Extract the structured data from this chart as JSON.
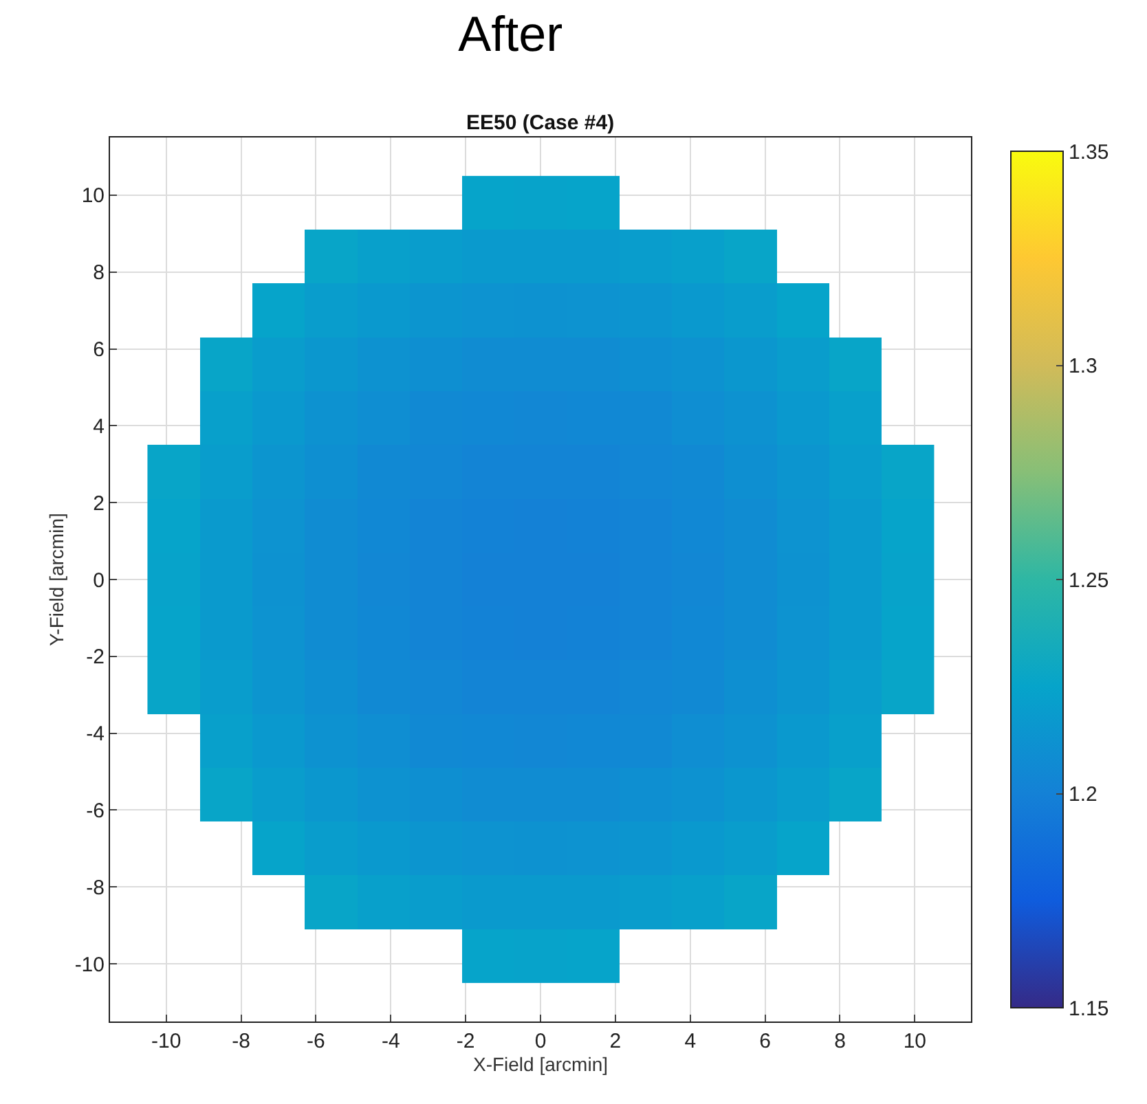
{
  "chart_data": {
    "type": "heatmap",
    "title": "After",
    "subtitle": "EE50 (Case #4)",
    "xlabel": "X-Field [arcmin]",
    "ylabel": "Y-Field [arcmin]",
    "x": [
      -9.8,
      -8.4,
      -7.0,
      -5.6,
      -4.2,
      -2.8,
      -1.4,
      0,
      1.4,
      2.8,
      4.2,
      5.6,
      7.0,
      8.4,
      9.8
    ],
    "y": [
      9.8,
      8.4,
      7.0,
      5.6,
      4.2,
      2.8,
      1.4,
      0,
      -1.4,
      -2.8,
      -4.2,
      -5.6,
      -7.0,
      -8.4,
      -9.8
    ],
    "cells": [
      [
        null,
        null,
        null,
        null,
        null,
        null,
        1.225,
        1.224,
        1.225,
        null,
        null,
        null,
        null,
        null,
        null
      ],
      [
        null,
        null,
        null,
        1.226,
        1.222,
        1.22,
        1.218,
        1.218,
        1.218,
        1.22,
        1.222,
        1.226,
        null,
        null,
        null
      ],
      [
        null,
        null,
        1.225,
        1.22,
        1.217,
        1.214,
        1.213,
        1.212,
        1.213,
        1.214,
        1.217,
        1.22,
        1.225,
        null,
        null
      ],
      [
        null,
        1.226,
        1.22,
        1.216,
        1.212,
        1.21,
        1.208,
        1.208,
        1.208,
        1.21,
        1.212,
        1.216,
        1.22,
        1.226,
        null
      ],
      [
        null,
        1.222,
        1.217,
        1.212,
        1.209,
        1.206,
        1.205,
        1.204,
        1.205,
        1.206,
        1.209,
        1.212,
        1.217,
        1.222,
        null
      ],
      [
        1.226,
        1.22,
        1.214,
        1.21,
        1.206,
        1.204,
        1.202,
        1.202,
        1.202,
        1.204,
        1.206,
        1.21,
        1.214,
        1.22,
        1.226
      ],
      [
        1.225,
        1.218,
        1.213,
        1.208,
        1.205,
        1.202,
        1.201,
        1.2,
        1.201,
        1.202,
        1.205,
        1.208,
        1.213,
        1.218,
        1.225
      ],
      [
        1.224,
        1.218,
        1.212,
        1.208,
        1.204,
        1.202,
        1.2,
        1.2,
        1.2,
        1.202,
        1.204,
        1.208,
        1.212,
        1.218,
        1.224
      ],
      [
        1.225,
        1.218,
        1.213,
        1.208,
        1.205,
        1.202,
        1.201,
        1.2,
        1.201,
        1.202,
        1.205,
        1.208,
        1.213,
        1.218,
        1.225
      ],
      [
        1.226,
        1.22,
        1.214,
        1.21,
        1.206,
        1.204,
        1.202,
        1.202,
        1.202,
        1.204,
        1.206,
        1.21,
        1.214,
        1.22,
        1.226
      ],
      [
        null,
        1.222,
        1.217,
        1.212,
        1.209,
        1.206,
        1.205,
        1.204,
        1.205,
        1.206,
        1.209,
        1.212,
        1.217,
        1.222,
        null
      ],
      [
        null,
        1.226,
        1.22,
        1.216,
        1.212,
        1.21,
        1.208,
        1.208,
        1.208,
        1.21,
        1.212,
        1.216,
        1.22,
        1.226,
        null
      ],
      [
        null,
        null,
        1.225,
        1.22,
        1.217,
        1.214,
        1.213,
        1.212,
        1.213,
        1.214,
        1.217,
        1.22,
        1.225,
        null,
        null
      ],
      [
        null,
        null,
        null,
        1.226,
        1.222,
        1.22,
        1.218,
        1.218,
        1.218,
        1.22,
        1.222,
        1.226,
        null,
        null,
        null
      ],
      [
        null,
        null,
        null,
        null,
        null,
        null,
        1.225,
        1.224,
        1.225,
        null,
        null,
        null,
        null,
        null,
        null
      ]
    ],
    "xlim": [
      -11.5,
      11.5
    ],
    "ylim": [
      -11.5,
      11.5
    ],
    "xticks": [
      -10,
      -8,
      -6,
      -4,
      -2,
      0,
      2,
      4,
      6,
      8,
      10
    ],
    "yticks": [
      -10,
      -8,
      -6,
      -4,
      -2,
      0,
      2,
      4,
      6,
      8,
      10
    ],
    "clim": [
      1.15,
      1.35
    ],
    "cticks": [
      1.15,
      1.2,
      1.25,
      1.3,
      1.35
    ],
    "grid": true
  }
}
